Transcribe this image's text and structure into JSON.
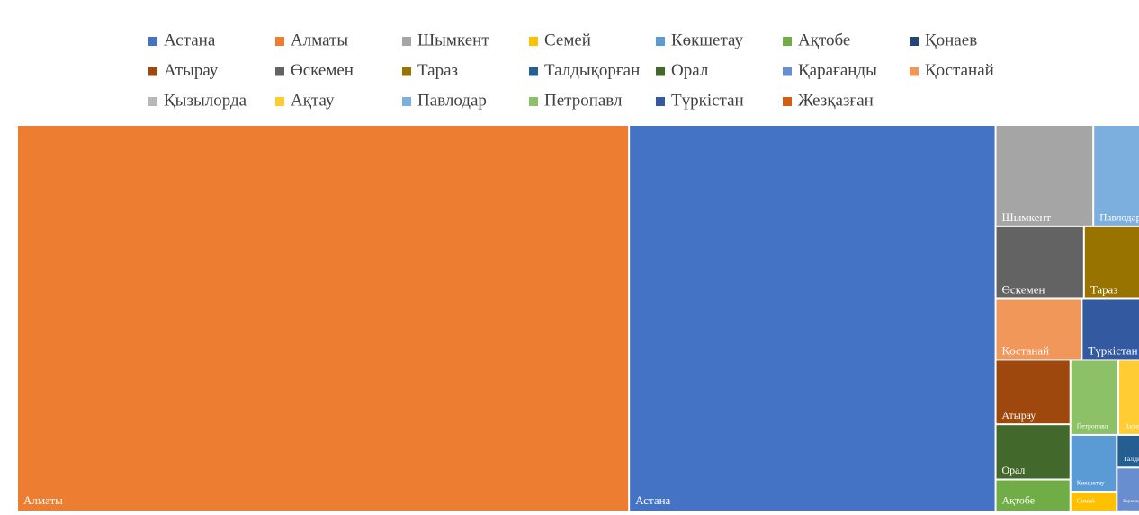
{
  "chart_data": {
    "type": "treemap",
    "categories": [
      "Астана",
      "Алматы",
      "Шымкент",
      "Семей",
      "Көкшетау",
      "Ақтобе",
      "Қонаев",
      "Атырау",
      "Өскемен",
      "Тараз",
      "Талдықорған",
      "Орал",
      "Қарағанды",
      "Қостанай",
      "Қызылорда",
      "Ақтау",
      "Павлодар",
      "Петропавл",
      "Түркістан",
      "Жезқазған"
    ],
    "values": [
      1682,
      2808,
      113,
      19,
      30,
      41,
      3,
      55,
      73,
      67,
      18,
      47,
      13,
      60,
      11,
      40,
      83,
      41,
      58,
      6
    ],
    "colors": [
      "#4472c4",
      "#ed7d31",
      "#a5a5a5",
      "#ffc000",
      "#5b9bd5",
      "#70ad47",
      "#264478",
      "#9e480e",
      "#636363",
      "#997300",
      "#255e91",
      "#43682b",
      "#698ed0",
      "#f1975a",
      "#b7b7b7",
      "#ffcd33",
      "#7cafdd",
      "#8cc168",
      "#335aa1",
      "#d26012"
    ],
    "legend": "top"
  }
}
